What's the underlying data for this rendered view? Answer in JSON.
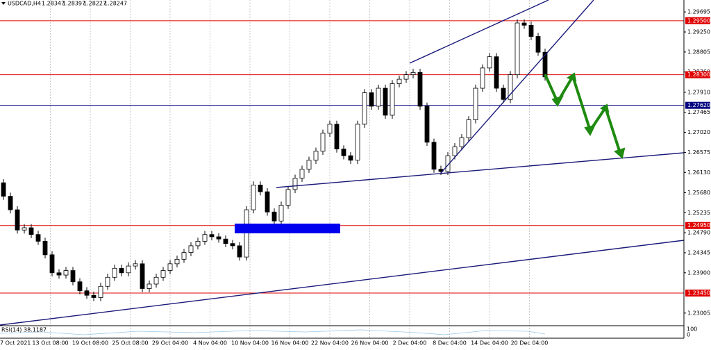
{
  "chart_data": {
    "type": "candlestick",
    "symbol": "USDCAD,H4",
    "header_values": [
      1.28347,
      1.28397,
      1.28227,
      1.28247
    ],
    "open": [
      1.259,
      1.256,
      1.253,
      1.2485,
      1.249,
      1.2475,
      1.246,
      1.243,
      1.239,
      1.2385,
      1.2395,
      1.237,
      1.235,
      1.234,
      1.2335,
      1.236,
      1.238,
      1.24,
      1.239,
      1.2405,
      1.241,
      1.2355,
      1.2365,
      1.238,
      1.2395,
      1.241,
      1.242,
      1.2435,
      1.245,
      1.246,
      1.2475,
      1.247,
      1.2465,
      1.2455,
      1.245,
      1.2425,
      1.253,
      1.2585,
      1.257,
      1.2525,
      1.2505,
      1.254,
      1.2575,
      1.26,
      1.262,
      1.264,
      1.266,
      1.27,
      1.272,
      1.2665,
      1.265,
      1.264,
      1.272,
      1.279,
      1.276,
      1.28,
      1.274,
      1.281,
      1.282,
      1.283,
      1.2835,
      1.276,
      1.268,
      1.262,
      1.2615,
      1.265,
      1.267,
      1.269,
      1.273,
      1.28,
      1.2845,
      1.287,
      1.28,
      1.2775,
      1.283,
      1.2945,
      1.294,
      1.2915,
      1.288
    ],
    "high": [
      1.2598,
      1.2568,
      1.2538,
      1.2498,
      1.2498,
      1.2483,
      1.2468,
      1.2438,
      1.2398,
      1.2403,
      1.2403,
      1.2378,
      1.2358,
      1.2348,
      1.2368,
      1.2388,
      1.2408,
      1.2408,
      1.2413,
      1.2418,
      1.2418,
      1.2373,
      1.2388,
      1.2403,
      1.2418,
      1.2428,
      1.2443,
      1.2458,
      1.2468,
      1.2483,
      1.2483,
      1.2478,
      1.2473,
      1.2463,
      1.2458,
      1.2538,
      1.2593,
      1.2593,
      1.2578,
      1.2533,
      1.2548,
      1.2583,
      1.2608,
      1.2628,
      1.2648,
      1.2668,
      1.2708,
      1.2728,
      1.2728,
      1.2673,
      1.2658,
      1.2728,
      1.2798,
      1.2798,
      1.2808,
      1.2808,
      1.2818,
      1.2828,
      1.2838,
      1.2843,
      1.2843,
      1.2768,
      1.2688,
      1.2628,
      1.2658,
      1.2678,
      1.2698,
      1.2738,
      1.2808,
      1.2853,
      1.2878,
      1.2878,
      1.2808,
      1.2838,
      1.2953,
      1.2953,
      1.2948,
      1.2923,
      1.2888
    ],
    "low": [
      1.2552,
      1.2522,
      1.2477,
      1.2477,
      1.2467,
      1.2452,
      1.2422,
      1.2382,
      1.2377,
      1.2377,
      1.2362,
      1.2342,
      1.2332,
      1.2327,
      1.2327,
      1.2352,
      1.2372,
      1.2382,
      1.2382,
      1.2397,
      1.2347,
      1.2347,
      1.2357,
      1.2372,
      1.2387,
      1.2402,
      1.2412,
      1.2427,
      1.2442,
      1.2452,
      1.2462,
      1.2457,
      1.2447,
      1.2442,
      1.2417,
      1.2417,
      1.2522,
      1.2562,
      1.2517,
      1.2497,
      1.2497,
      1.2532,
      1.2567,
      1.2592,
      1.2612,
      1.2632,
      1.2652,
      1.2692,
      1.2657,
      1.2642,
      1.2632,
      1.2632,
      1.2712,
      1.2752,
      1.2752,
      1.2732,
      1.2732,
      1.2802,
      1.2812,
      1.2822,
      1.2752,
      1.2672,
      1.2612,
      1.2607,
      1.2607,
      1.2642,
      1.2662,
      1.2682,
      1.2722,
      1.2792,
      1.2837,
      1.2792,
      1.2767,
      1.2767,
      1.2822,
      1.2932,
      1.2907,
      1.2872,
      1.2817
    ],
    "close": [
      1.256,
      1.253,
      1.2485,
      1.249,
      1.2475,
      1.246,
      1.243,
      1.239,
      1.2385,
      1.2395,
      1.237,
      1.235,
      1.234,
      1.2335,
      1.236,
      1.238,
      1.24,
      1.239,
      1.2405,
      1.241,
      1.2355,
      1.2365,
      1.238,
      1.2395,
      1.241,
      1.242,
      1.2435,
      1.245,
      1.246,
      1.2475,
      1.247,
      1.2465,
      1.2455,
      1.245,
      1.2425,
      1.253,
      1.2585,
      1.257,
      1.2525,
      1.2505,
      1.254,
      1.2575,
      1.26,
      1.262,
      1.264,
      1.266,
      1.27,
      1.272,
      1.2665,
      1.265,
      1.264,
      1.272,
      1.279,
      1.276,
      1.28,
      1.274,
      1.281,
      1.282,
      1.283,
      1.2835,
      1.276,
      1.268,
      1.262,
      1.2615,
      1.265,
      1.267,
      1.269,
      1.273,
      1.28,
      1.2845,
      1.287,
      1.28,
      1.2775,
      1.283,
      1.2945,
      1.294,
      1.2915,
      1.288,
      1.2825
    ],
    "up_color": "#ffffff",
    "down_color": "#000000",
    "x_labels": [
      "7 Oct 2021",
      "13 Oct 08:00",
      "19 Oct 08:00",
      "25 Oct 08:00",
      "29 Oct 04:00",
      "4 Nov 04:00",
      "10 Nov 04:00",
      "16 Nov 04:00",
      "22 Nov 04:00",
      "26 Nov 04:00",
      "2 Dec 04:00",
      "8 Dec 04:00",
      "14 Dec 04:00",
      "20 Dec 04:00"
    ],
    "ylim": [
      1.2274,
      1.2996
    ],
    "yticks": [
      1.29695,
      {
        "value": 1.2925,
        "label": "1.29250"
      },
      1.28805,
      {
        "value": 1.2836,
        "label": "1.28360"
      },
      {
        "value": 1.2791,
        "label": "1.27910"
      },
      1.27465,
      {
        "value": 1.2702,
        "label": "1.27020"
      },
      1.26575,
      {
        "value": 1.2613,
        "label": "1.26130"
      },
      {
        "value": 1.2568,
        "label": "1.25680"
      },
      1.25235,
      {
        "value": 1.2479,
        "label": "1.24790"
      },
      1.24345,
      {
        "value": 1.239,
        "label": "1.23900"
      },
      1.23005
    ],
    "levels": [
      {
        "value": 1.295,
        "label": "1.29500",
        "color": "#e00000"
      },
      {
        "value": 1.283,
        "label": "1.28300",
        "color": "#e00000"
      },
      {
        "value": 1.2762,
        "label": "1.27620",
        "color": "#000080"
      },
      {
        "value": 1.2495,
        "label": "1.24950",
        "color": "#e00000"
      },
      {
        "value": 1.2345,
        "label": "1.23450",
        "color": "#e00000"
      }
    ],
    "indicator": {
      "name": "RSI(14)",
      "value": 38.1187,
      "scale_labels": [
        100,
        0
      ]
    }
  }
}
